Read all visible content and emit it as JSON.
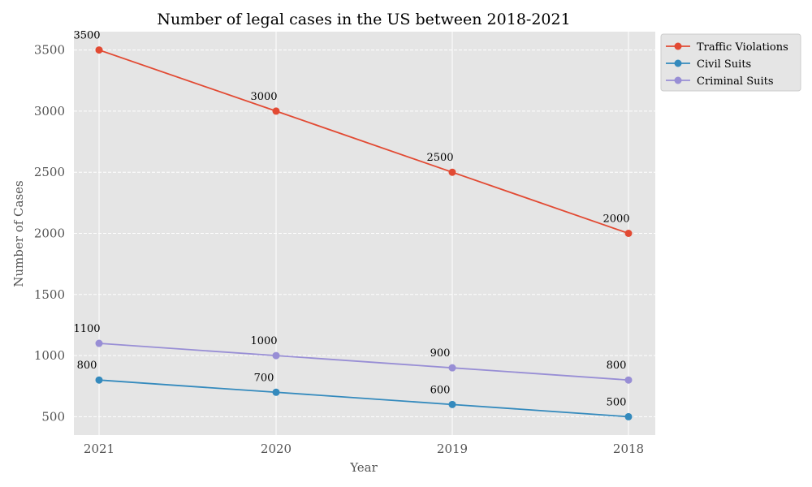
{
  "chart_data": {
    "type": "line",
    "title": "Number of legal cases in the US between 2018-2021",
    "xlabel": "Year",
    "ylabel": "Number of Cases",
    "categories": [
      "2021",
      "2020",
      "2019",
      "2018"
    ],
    "ylim": [
      350,
      3650
    ],
    "yticks": [
      500,
      1000,
      1500,
      2000,
      2500,
      3000,
      3500
    ],
    "grid": true,
    "legend_position": "outside-top-right",
    "series": [
      {
        "name": "Traffic Violations",
        "color": "#E24A33",
        "values": [
          3500,
          3000,
          2500,
          2000
        ]
      },
      {
        "name": "Civil Suits",
        "color": "#348ABD",
        "values": [
          800,
          700,
          600,
          500
        ]
      },
      {
        "name": "Criminal Suits",
        "color": "#988ED5",
        "values": [
          1100,
          1000,
          900,
          800
        ]
      }
    ]
  }
}
